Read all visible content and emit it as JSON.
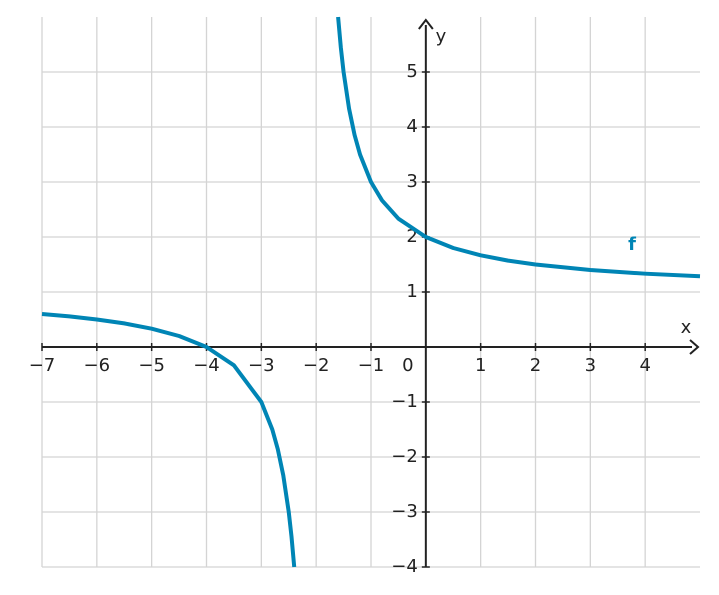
{
  "chart_data": {
    "type": "line",
    "x_label": "x",
    "y_label": "y",
    "x": [
      -7,
      -6.5,
      -6,
      -5.5,
      -5,
      -4.5,
      -4,
      -3.5,
      -3,
      -2.8,
      -2.7,
      -2.6,
      -2.5,
      -2.45,
      -2.4,
      -2,
      -1.6,
      -1.55,
      -1.5,
      -1.4,
      -1.3,
      -1.2,
      -1,
      -0.8,
      -0.5,
      0,
      0.5,
      1,
      1.5,
      2,
      3,
      4,
      5
    ],
    "series": [
      {
        "name": "f",
        "color": "#0085b5",
        "values": [
          0.6,
          0.556,
          0.5,
          0.429,
          0.333,
          0.2,
          0,
          -0.333,
          -1,
          -1.5,
          -1.857,
          -2.333,
          -3,
          -3.444,
          -4,
          null,
          6,
          5.444,
          5,
          4.333,
          3.857,
          3.5,
          3,
          2.667,
          2.333,
          2,
          1.8,
          1.667,
          1.571,
          1.5,
          1.4,
          1.333,
          1.286
        ]
      }
    ],
    "xlim": [
      -7,
      5
    ],
    "ylim": [
      -4,
      6
    ],
    "xticks": [
      {
        "value": -7,
        "label": "−7"
      },
      {
        "value": -6,
        "label": "−6"
      },
      {
        "value": -5,
        "label": "−5"
      },
      {
        "value": -4,
        "label": "−4"
      },
      {
        "value": -3,
        "label": "−3"
      },
      {
        "value": -2,
        "label": "−2"
      },
      {
        "value": -1,
        "label": "−1"
      },
      0,
      1,
      2,
      3,
      4
    ],
    "yticks": [
      {
        "value": -4,
        "label": "−4"
      },
      {
        "value": -3,
        "label": "−3"
      },
      {
        "value": -2,
        "label": "−2"
      },
      {
        "value": -1,
        "label": "−1"
      },
      1,
      2,
      3,
      4,
      5
    ],
    "grid": true
  }
}
